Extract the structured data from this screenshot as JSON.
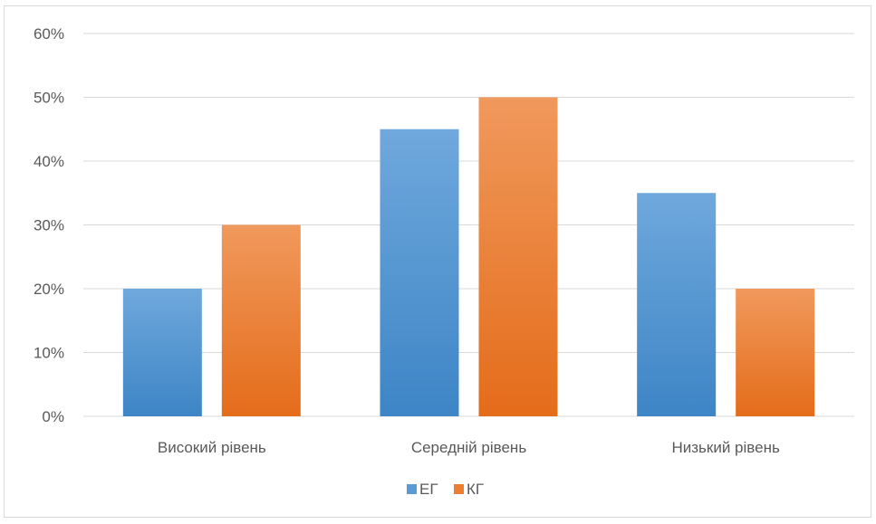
{
  "chart_data": {
    "type": "bar",
    "categories": [
      "Високий рівень",
      "Середній рівень",
      "Низький рівень"
    ],
    "series": [
      {
        "name": "ЕГ",
        "values": [
          20,
          45,
          35
        ],
        "color": "#5b9bd5",
        "gradient": [
          "#6fa8dc",
          "#3d85c6"
        ]
      },
      {
        "name": "КГ",
        "values": [
          30,
          50,
          20
        ],
        "color": "#ed7d31",
        "gradient": [
          "#f0995c",
          "#e46c1a"
        ]
      }
    ],
    "y_ticks": [
      "0%",
      "10%",
      "20%",
      "30%",
      "40%",
      "50%",
      "60%"
    ],
    "ylim": [
      0,
      60
    ],
    "grid": true,
    "legend_position": "bottom",
    "title": "",
    "xlabel": "",
    "ylabel": ""
  }
}
